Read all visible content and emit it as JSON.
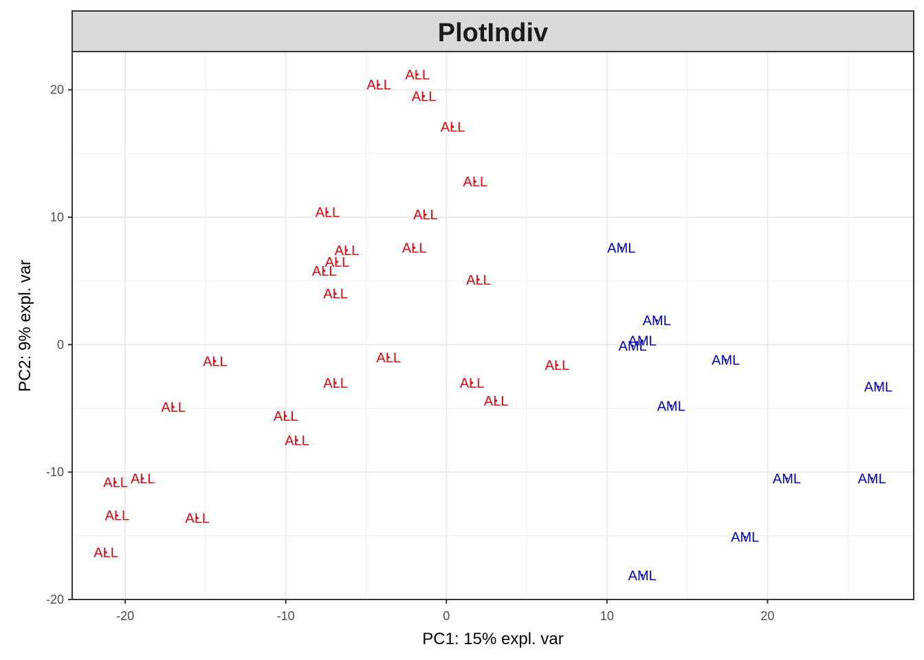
{
  "chart_data": {
    "type": "scatter",
    "title": "PlotIndiv",
    "xlabel": "PC1: 15% expl. var",
    "ylabel": "PC2: 9% expl. var",
    "xlim": [
      -23.3,
      29.1
    ],
    "ylim": [
      -20.0,
      23.0
    ],
    "xticks": [
      -20,
      -10,
      0,
      10,
      20
    ],
    "yticks": [
      -20,
      -10,
      0,
      10,
      20
    ],
    "xtick_labels": [
      "-20",
      "-10",
      "0",
      "10",
      "20"
    ],
    "ytick_labels": [
      "-20",
      "-10",
      "0",
      "10",
      "20"
    ],
    "grid": true,
    "legend": "none",
    "colors": {
      "ALL": "#e8000b",
      "AML": "#0000cc"
    },
    "series": [
      {
        "label": "ALL",
        "color": "#e8000b",
        "points": [
          {
            "x": -1.8,
            "y": 21.2
          },
          {
            "x": -4.2,
            "y": 20.4
          },
          {
            "x": -1.4,
            "y": 19.5
          },
          {
            "x": 0.4,
            "y": 17.1
          },
          {
            "x": 1.8,
            "y": 12.8
          },
          {
            "x": -7.4,
            "y": 10.4
          },
          {
            "x": -1.3,
            "y": 10.2
          },
          {
            "x": -6.2,
            "y": 7.4
          },
          {
            "x": -2.0,
            "y": 7.6
          },
          {
            "x": -6.8,
            "y": 6.5
          },
          {
            "x": -7.6,
            "y": 5.8
          },
          {
            "x": 2.0,
            "y": 5.1
          },
          {
            "x": -6.9,
            "y": 4.0
          },
          {
            "x": -14.4,
            "y": -1.3
          },
          {
            "x": -3.6,
            "y": -1.0
          },
          {
            "x": 6.9,
            "y": -1.6
          },
          {
            "x": -6.9,
            "y": -3.0
          },
          {
            "x": 1.6,
            "y": -3.0
          },
          {
            "x": 3.1,
            "y": -4.4
          },
          {
            "x": -17.0,
            "y": -4.9
          },
          {
            "x": -10.0,
            "y": -5.6
          },
          {
            "x": -9.3,
            "y": -7.5
          },
          {
            "x": -18.9,
            "y": -10.5
          },
          {
            "x": -20.6,
            "y": -10.8
          },
          {
            "x": -20.5,
            "y": -13.4
          },
          {
            "x": -15.5,
            "y": -13.6
          },
          {
            "x": -21.2,
            "y": -16.3
          }
        ]
      },
      {
        "label": "AML",
        "color": "#0000cc",
        "points": [
          {
            "x": 10.9,
            "y": 7.6
          },
          {
            "x": 13.1,
            "y": 1.9
          },
          {
            "x": 12.2,
            "y": 0.3
          },
          {
            "x": 11.6,
            "y": -0.1
          },
          {
            "x": 17.4,
            "y": -1.2
          },
          {
            "x": 26.9,
            "y": -3.3
          },
          {
            "x": 14.0,
            "y": -4.8
          },
          {
            "x": 21.2,
            "y": -10.5
          },
          {
            "x": 26.5,
            "y": -10.5
          },
          {
            "x": 18.6,
            "y": -15.1
          },
          {
            "x": 12.2,
            "y": -18.1
          }
        ]
      }
    ]
  }
}
